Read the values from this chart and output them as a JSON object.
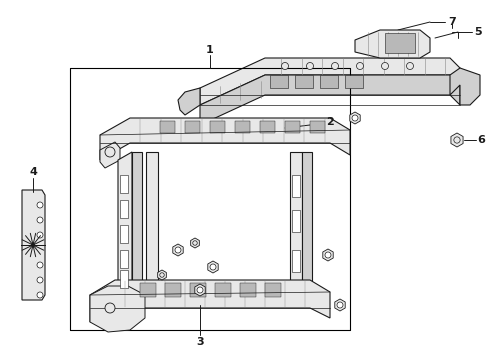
{
  "fig_width": 4.89,
  "fig_height": 3.6,
  "dpi": 100,
  "bg": "#ffffff",
  "lc": "#1a1a1a",
  "gray1": "#d0d0d0",
  "gray2": "#e8e8e8",
  "gray3": "#b8b8b8"
}
